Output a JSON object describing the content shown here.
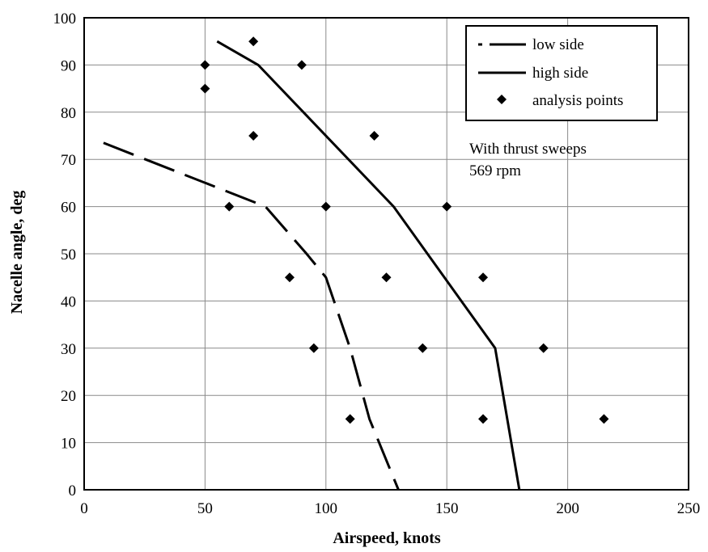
{
  "chart_data": {
    "type": "line",
    "xlabel": "Airspeed, knots",
    "ylabel": "Nacelle angle, deg",
    "xlim": [
      0,
      250
    ],
    "ylim": [
      0,
      100
    ],
    "xticks": [
      "0",
      "50",
      "100",
      "150",
      "200",
      "250"
    ],
    "yticks": [
      "0",
      "10",
      "20",
      "30",
      "40",
      "50",
      "60",
      "70",
      "80",
      "90",
      "100"
    ],
    "grid": true,
    "legend_position": "top-right",
    "series": [
      {
        "name": "low side",
        "style": "dashed",
        "x": [
          8,
          75,
          92,
          100,
          110,
          118,
          130
        ],
        "y": [
          73.5,
          60,
          50,
          45,
          30,
          15,
          0
        ]
      },
      {
        "name": "high side",
        "style": "solid",
        "x": [
          55,
          72,
          128,
          170,
          180
        ],
        "y": [
          95,
          90,
          60,
          30,
          0
        ]
      },
      {
        "name": "analysis points",
        "style": "marker",
        "points": [
          [
            50,
            90
          ],
          [
            70,
            95
          ],
          [
            90,
            90
          ],
          [
            50,
            85
          ],
          [
            70,
            75
          ],
          [
            120,
            75
          ],
          [
            60,
            60
          ],
          [
            100,
            60
          ],
          [
            150,
            60
          ],
          [
            85,
            45
          ],
          [
            125,
            45
          ],
          [
            165,
            45
          ],
          [
            95,
            30
          ],
          [
            140,
            30
          ],
          [
            190,
            30
          ],
          [
            110,
            15
          ],
          [
            165,
            15
          ],
          [
            215,
            15
          ]
        ]
      }
    ],
    "annotation": [
      "With thrust sweeps",
      "569 rpm"
    ]
  }
}
